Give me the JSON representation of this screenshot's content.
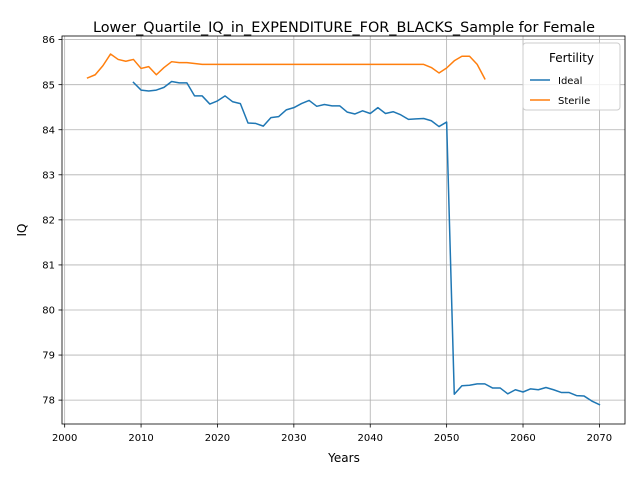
{
  "chart_data": {
    "type": "line",
    "title": "Lower_Quartile_IQ_in_EXPENDITURE_FOR_BLACKS_Sample for Female",
    "xlabel": "Years",
    "ylabel": "IQ",
    "xlim": [
      1999.65,
      2073.35
    ],
    "ylim": [
      77.47,
      86.08
    ],
    "xticks": [
      2000,
      2010,
      2020,
      2030,
      2040,
      2050,
      2060,
      2070
    ],
    "yticks": [
      78,
      79,
      80,
      81,
      82,
      83,
      84,
      85,
      86
    ],
    "grid": true,
    "legend": {
      "title": "Fertility",
      "placement": "upper right"
    },
    "series": [
      {
        "name": "Ideal",
        "color": "#1f77b4",
        "x": [
          2009,
          2010,
          2011,
          2012,
          2013,
          2014,
          2015,
          2016,
          2017,
          2018,
          2019,
          2020,
          2021,
          2022,
          2023,
          2024,
          2025,
          2026,
          2027,
          2028,
          2029,
          2030,
          2031,
          2032,
          2033,
          2034,
          2035,
          2036,
          2037,
          2038,
          2039,
          2040,
          2041,
          2042,
          2043,
          2044,
          2045,
          2046,
          2047,
          2048,
          2049,
          2050,
          2051,
          2052,
          2053,
          2054,
          2055,
          2056,
          2057,
          2058,
          2059,
          2060,
          2061,
          2062,
          2063,
          2064,
          2065,
          2066,
          2067,
          2068,
          2069,
          2070
        ],
        "y": [
          85.05,
          84.88,
          84.86,
          84.88,
          84.94,
          85.07,
          85.04,
          85.04,
          84.75,
          84.75,
          84.57,
          84.64,
          84.75,
          84.62,
          84.58,
          84.15,
          84.14,
          84.08,
          84.27,
          84.29,
          84.44,
          84.49,
          84.58,
          84.65,
          84.52,
          84.56,
          84.53,
          84.53,
          84.39,
          84.35,
          84.42,
          84.36,
          84.49,
          84.36,
          84.4,
          84.33,
          84.23,
          84.24,
          84.25,
          84.2,
          84.07,
          84.17,
          78.13,
          78.32,
          78.33,
          78.36,
          78.36,
          78.27,
          78.27,
          78.14,
          78.23,
          78.18,
          78.25,
          78.23,
          78.28,
          78.23,
          78.17,
          78.17,
          78.1,
          78.09,
          77.98,
          77.9
        ]
      },
      {
        "name": "Sterile",
        "color": "#ff7f0e",
        "x": [
          2003,
          2004,
          2005,
          2006,
          2007,
          2008,
          2009,
          2010,
          2011,
          2012,
          2013,
          2014,
          2015,
          2016,
          2017,
          2018,
          2019,
          2020,
          2021,
          2022,
          2023,
          2024,
          2025,
          2026,
          2027,
          2028,
          2029,
          2030,
          2031,
          2032,
          2033,
          2034,
          2035,
          2036,
          2037,
          2038,
          2039,
          2040,
          2041,
          2042,
          2043,
          2044,
          2045,
          2046,
          2047,
          2048,
          2049,
          2050,
          2051,
          2052,
          2053,
          2054,
          2055
        ],
        "y": [
          85.15,
          85.22,
          85.42,
          85.68,
          85.56,
          85.52,
          85.56,
          85.36,
          85.4,
          85.22,
          85.38,
          85.51,
          85.49,
          85.49,
          85.47,
          85.45,
          85.45,
          85.45,
          85.45,
          85.45,
          85.45,
          85.45,
          85.45,
          85.45,
          85.45,
          85.45,
          85.45,
          85.45,
          85.45,
          85.45,
          85.45,
          85.45,
          85.45,
          85.45,
          85.45,
          85.45,
          85.45,
          85.45,
          85.45,
          85.45,
          85.45,
          85.45,
          85.45,
          85.45,
          85.45,
          85.38,
          85.26,
          85.37,
          85.53,
          85.63,
          85.63,
          85.45,
          85.13
        ]
      }
    ]
  }
}
